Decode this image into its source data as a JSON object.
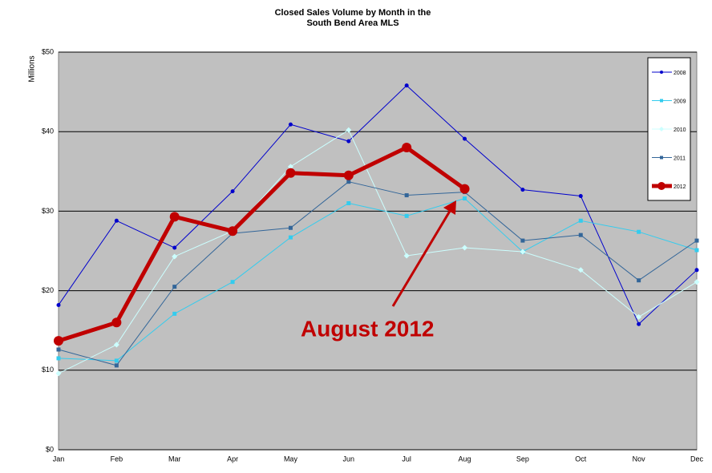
{
  "chart_data": {
    "type": "line",
    "title": "Closed Sales Volume by Month in the",
    "subtitle": "South Bend Area MLS",
    "y_label": "Millions",
    "categories": [
      "Jan",
      "Feb",
      "Mar",
      "Apr",
      "May",
      "Jun",
      "Jul",
      "Aug",
      "Sep",
      "Oct",
      "Nov",
      "Dec"
    ],
    "series": [
      {
        "name": "2008",
        "color": "#0000cc",
        "marker": "circle",
        "width": 1,
        "values": [
          18.2,
          28.8,
          25.4,
          32.5,
          40.9,
          38.8,
          45.8,
          39.1,
          32.7,
          31.9,
          15.8,
          22.6
        ]
      },
      {
        "name": "2009",
        "color": "#33ccee",
        "marker": "square",
        "width": 1,
        "values": [
          11.5,
          11.2,
          17.1,
          21.1,
          26.7,
          31.0,
          29.4,
          31.6,
          24.9,
          28.8,
          27.4,
          25.1
        ]
      },
      {
        "name": "2010",
        "color": "#ccffff",
        "marker": "diamond",
        "width": 1,
        "values": [
          9.6,
          13.2,
          24.3,
          27.5,
          35.6,
          40.2,
          24.4,
          25.4,
          24.9,
          22.6,
          16.7,
          21.1
        ]
      },
      {
        "name": "2011",
        "color": "#336699",
        "marker": "square",
        "width": 1,
        "values": [
          12.6,
          10.6,
          20.5,
          27.2,
          27.9,
          33.7,
          32.0,
          32.4,
          26.3,
          27.0,
          21.3,
          26.3
        ]
      },
      {
        "name": "2012",
        "color": "#c00000",
        "marker": "circle",
        "width": 5,
        "values": [
          13.7,
          16.0,
          29.3,
          27.5,
          34.8,
          34.5,
          38.0,
          32.8,
          null,
          null,
          null,
          null
        ]
      }
    ],
    "ylim": [
      0,
      50
    ],
    "yticks": [
      {
        "value": 0,
        "label": "$0"
      },
      {
        "value": 10,
        "label": "$10"
      },
      {
        "value": 20,
        "label": "$20"
      },
      {
        "value": 30,
        "label": "$30"
      },
      {
        "value": 40,
        "label": "$40"
      },
      {
        "value": 50,
        "label": "$50"
      }
    ],
    "grid": true,
    "legend": "upper right",
    "annotation": "August 2012"
  }
}
